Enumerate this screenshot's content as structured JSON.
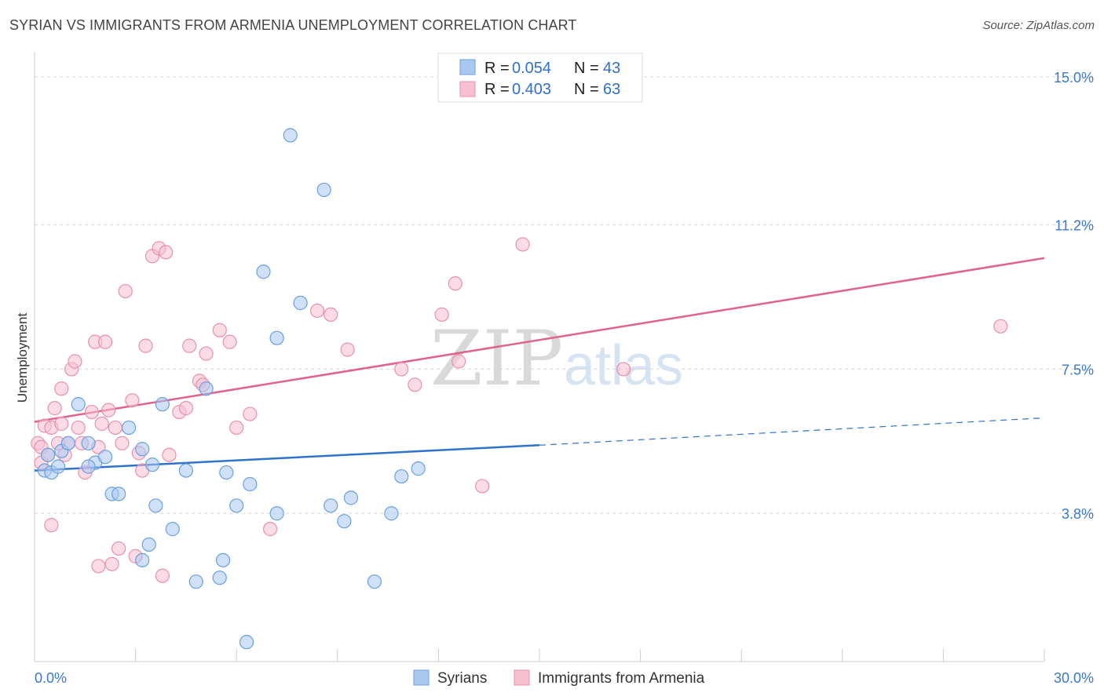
{
  "title": "SYRIAN VS IMMIGRANTS FROM ARMENIA UNEMPLOYMENT CORRELATION CHART",
  "source": "Source: ZipAtlas.com",
  "watermark": {
    "zip": "ZIP",
    "atlas": "atlas"
  },
  "legend": {
    "r_label": "R =",
    "n_label": "N =",
    "rows": [
      {
        "r": "0.054",
        "n": "43"
      },
      {
        "r": "0.403",
        "n": "63"
      }
    ]
  },
  "colors": {
    "syrians_fill": "#a9c8f0",
    "syrians_stroke": "#6a9fe0",
    "syrians_line": "#2f72cc",
    "armenia_fill": "#f7bfd0",
    "armenia_stroke": "#e890ad",
    "armenia_line": "#e0628e",
    "grid": "#d8d8d8",
    "tick_label": "#3b78c9"
  },
  "chart_data": {
    "type": "scatter",
    "title": "SYRIAN VS IMMIGRANTS FROM ARMENIA UNEMPLOYMENT CORRELATION CHART",
    "xlabel": "",
    "ylabel": "Unemployment",
    "xlim": [
      0,
      30
    ],
    "ylim": [
      0,
      15.4
    ],
    "x_tick_labels": [
      "0.0%",
      "30.0%"
    ],
    "y_ticks": [
      3.8,
      7.5,
      11.2,
      15.0
    ],
    "y_tick_labels": [
      "3.8%",
      "7.5%",
      "11.2%",
      "15.0%"
    ],
    "grid": true,
    "legend_position": "top-center",
    "series": [
      {
        "name": "Syrians",
        "r": 0.054,
        "n": 43,
        "trend": {
          "x0": 0,
          "y0": 4.9,
          "x1": 15.0,
          "y1": 5.55,
          "dashed_to_x": 30,
          "dashed_to_y": 6.25
        },
        "points": [
          [
            0.3,
            4.9
          ],
          [
            0.4,
            5.3
          ],
          [
            0.5,
            4.85
          ],
          [
            0.7,
            5.0
          ],
          [
            0.8,
            5.4
          ],
          [
            1.0,
            5.6
          ],
          [
            1.3,
            6.6
          ],
          [
            1.6,
            5.6
          ],
          [
            1.8,
            5.1
          ],
          [
            2.1,
            5.25
          ],
          [
            2.3,
            4.3
          ],
          [
            2.5,
            4.3
          ],
          [
            2.8,
            6.0
          ],
          [
            3.2,
            5.45
          ],
          [
            3.5,
            5.05
          ],
          [
            3.4,
            3.0
          ],
          [
            3.6,
            4.0
          ],
          [
            3.8,
            6.6
          ],
          [
            4.1,
            3.4
          ],
          [
            4.5,
            4.9
          ],
          [
            4.8,
            2.05
          ],
          [
            5.1,
            7.0
          ],
          [
            5.5,
            2.15
          ],
          [
            5.6,
            2.6
          ],
          [
            5.7,
            4.85
          ],
          [
            6.0,
            4.0
          ],
          [
            6.3,
            0.5
          ],
          [
            6.4,
            4.55
          ],
          [
            6.8,
            10.0
          ],
          [
            7.2,
            8.3
          ],
          [
            7.2,
            3.8
          ],
          [
            7.6,
            13.5
          ],
          [
            7.9,
            9.2
          ],
          [
            8.6,
            12.1
          ],
          [
            8.8,
            4.0
          ],
          [
            9.2,
            3.6
          ],
          [
            9.4,
            4.2
          ],
          [
            10.1,
            2.05
          ],
          [
            10.6,
            3.8
          ],
          [
            10.9,
            4.75
          ],
          [
            11.4,
            4.95
          ],
          [
            1.6,
            5.0
          ],
          [
            3.2,
            2.6
          ]
        ]
      },
      {
        "name": "Immigrants from Armenia",
        "r": 0.403,
        "n": 63,
        "trend": {
          "x0": 0,
          "y0": 6.15,
          "x1": 30,
          "y1": 10.35
        },
        "points": [
          [
            0.1,
            5.6
          ],
          [
            0.2,
            5.1
          ],
          [
            0.2,
            5.5
          ],
          [
            0.3,
            6.05
          ],
          [
            0.4,
            5.3
          ],
          [
            0.5,
            3.5
          ],
          [
            0.5,
            6.0
          ],
          [
            0.6,
            6.5
          ],
          [
            0.7,
            5.6
          ],
          [
            0.8,
            7.0
          ],
          [
            0.9,
            5.3
          ],
          [
            1.0,
            5.6
          ],
          [
            1.1,
            7.5
          ],
          [
            1.2,
            7.7
          ],
          [
            1.3,
            6.0
          ],
          [
            1.4,
            5.6
          ],
          [
            1.5,
            4.85
          ],
          [
            1.7,
            6.4
          ],
          [
            1.8,
            8.2
          ],
          [
            1.9,
            5.5
          ],
          [
            2.0,
            6.1
          ],
          [
            2.1,
            8.2
          ],
          [
            2.2,
            6.45
          ],
          [
            2.3,
            2.5
          ],
          [
            2.4,
            6.0
          ],
          [
            2.5,
            2.9
          ],
          [
            2.6,
            5.6
          ],
          [
            2.7,
            9.5
          ],
          [
            2.9,
            6.7
          ],
          [
            3.1,
            5.35
          ],
          [
            3.2,
            4.9
          ],
          [
            3.3,
            8.1
          ],
          [
            3.5,
            10.4
          ],
          [
            3.7,
            10.6
          ],
          [
            3.8,
            2.2
          ],
          [
            3.9,
            10.5
          ],
          [
            4.0,
            5.3
          ],
          [
            4.3,
            6.4
          ],
          [
            4.5,
            6.5
          ],
          [
            4.6,
            8.1
          ],
          [
            4.9,
            7.2
          ],
          [
            5.0,
            7.1
          ],
          [
            5.1,
            7.9
          ],
          [
            5.5,
            8.5
          ],
          [
            5.8,
            8.2
          ],
          [
            6.0,
            6.0
          ],
          [
            6.4,
            6.35
          ],
          [
            7.0,
            3.4
          ],
          [
            8.4,
            9.0
          ],
          [
            8.8,
            8.9
          ],
          [
            9.3,
            8.0
          ],
          [
            10.9,
            7.5
          ],
          [
            11.3,
            7.1
          ],
          [
            12.1,
            8.9
          ],
          [
            12.5,
            9.7
          ],
          [
            12.6,
            7.7
          ],
          [
            13.3,
            4.5
          ],
          [
            14.5,
            10.7
          ],
          [
            17.5,
            7.5
          ],
          [
            28.7,
            8.6
          ],
          [
            3.0,
            2.7
          ],
          [
            1.9,
            2.45
          ],
          [
            0.8,
            6.1
          ]
        ]
      }
    ]
  }
}
